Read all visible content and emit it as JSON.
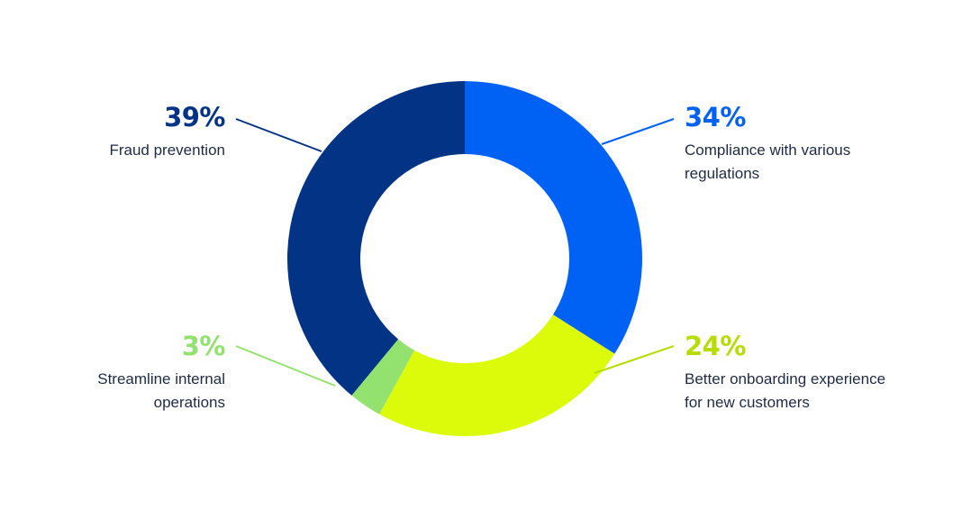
{
  "chart_data": {
    "type": "pie",
    "donut": true,
    "slices": [
      {
        "label": "Compliance with various regulations",
        "lines": [
          "Compliance with various",
          "regulations"
        ],
        "value": 34,
        "pct_label": "34%",
        "color": "#0062f5"
      },
      {
        "label": "Better onboarding experience for new customers",
        "lines": [
          "Better onboarding experience",
          "for new customers"
        ],
        "value": 24,
        "pct_label": "24%",
        "color": "#dcfb0a"
      },
      {
        "label": "Streamline internal operations",
        "lines": [
          "Streamline internal",
          "operations"
        ],
        "value": 3,
        "pct_label": "3%",
        "color": "#93e16e"
      },
      {
        "label": "Fraud prevention",
        "lines": [
          "Fraud prevention"
        ],
        "value": 39,
        "pct_label": "39%",
        "color": "#023384"
      }
    ],
    "label_colors": {
      "34%": "#0062f5",
      "24%": "#b6dc00",
      "3%": "#93e16e",
      "39%": "#023384"
    }
  }
}
